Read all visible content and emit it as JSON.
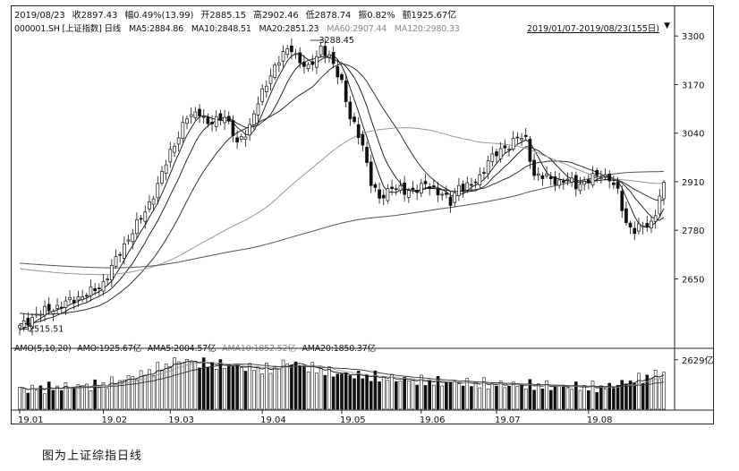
{
  "header": {
    "date": "2019/08/23",
    "close": "收2897.43",
    "change": "幅0.49%(13.99)",
    "open": "开2885.15",
    "high": "高2902.46",
    "low": "低2878.74",
    "amplitude": "振0.82%",
    "amount": "额1925.67亿"
  },
  "ma_legend": {
    "symbol": "000001.SH [上证指数] 日线",
    "ma5": "MA5:2884.86",
    "ma10": "MA10:2848.51",
    "ma20": "MA20:2851.23",
    "ma60": "MA60:2907.44",
    "ma120": "MA120:2980.33"
  },
  "range_label": "2019/01/07-2019/08/23(155日)",
  "range_arrow": "▼",
  "volume_legend": {
    "name": "AMO(5,10,20)",
    "amo": "AMO:1925.67亿",
    "ama5": "AMA5:2004.57亿",
    "ama10": "AMA10:1852.52亿",
    "ama20": "AMA20:1850.37亿"
  },
  "caption": "图为上证综指日线",
  "colors": {
    "line": "#111111",
    "faint": "#8a8a8a",
    "grid": "#cfcfcf",
    "bg": "#ffffff"
  },
  "chart_data": {
    "type": "candlestick",
    "symbol": "000001.SH",
    "y_ticks": [
      "3300",
      "3170",
      "3040",
      "2910",
      "2780",
      "2650"
    ],
    "y_range": [
      2500,
      3310
    ],
    "max_label": "3288.45",
    "min_label": "2515.51",
    "x_ticks": [
      "19.01",
      "19.02",
      "19.03",
      "19.04",
      "19.05",
      "19.06",
      "19.07",
      "19.08"
    ],
    "volume_tick": "2629亿",
    "keypoints": [
      [
        0,
        2520
      ],
      [
        4,
        2555
      ],
      [
        9,
        2575
      ],
      [
        14,
        2600
      ],
      [
        18,
        2620
      ],
      [
        20,
        2640
      ],
      [
        23,
        2700
      ],
      [
        26,
        2760
      ],
      [
        30,
        2830
      ],
      [
        33,
        2900
      ],
      [
        36,
        2990
      ],
      [
        40,
        3080
      ],
      [
        43,
        3100
      ],
      [
        45,
        3060
      ],
      [
        49,
        3090
      ],
      [
        52,
        3010
      ],
      [
        55,
        3060
      ],
      [
        57,
        3120
      ],
      [
        60,
        3200
      ],
      [
        63,
        3250
      ],
      [
        65,
        3270
      ],
      [
        67,
        3230
      ],
      [
        69,
        3210
      ],
      [
        72,
        3270
      ],
      [
        74,
        3240
      ],
      [
        77,
        3180
      ],
      [
        79,
        3080
      ],
      [
        82,
        3010
      ],
      [
        84,
        2910
      ],
      [
        86,
        2860
      ],
      [
        89,
        2900
      ],
      [
        92,
        2880
      ],
      [
        94,
        2890
      ],
      [
        97,
        2900
      ],
      [
        101,
        2880
      ],
      [
        103,
        2850
      ],
      [
        105,
        2900
      ],
      [
        108,
        2900
      ],
      [
        110,
        2920
      ],
      [
        112,
        2970
      ],
      [
        115,
        2990
      ],
      [
        117,
        3010
      ],
      [
        119,
        3030
      ],
      [
        121,
        3020
      ],
      [
        123,
        2930
      ],
      [
        126,
        2920
      ],
      [
        129,
        2910
      ],
      [
        131,
        2915
      ],
      [
        133,
        2900
      ],
      [
        135,
        2910
      ],
      [
        137,
        2920
      ],
      [
        139,
        2930
      ],
      [
        141,
        2920
      ],
      [
        143,
        2880
      ],
      [
        145,
        2800
      ],
      [
        147,
        2780
      ],
      [
        149,
        2790
      ],
      [
        151,
        2800
      ],
      [
        152,
        2830
      ],
      [
        153,
        2870
      ],
      [
        154,
        2897
      ]
    ],
    "ma_lines": [
      {
        "name": "MA5",
        "period": 5
      },
      {
        "name": "MA10",
        "period": 10
      },
      {
        "name": "MA20",
        "period": 20
      },
      {
        "name": "MA60",
        "period": 60
      },
      {
        "name": "MA120",
        "period": 120
      }
    ],
    "volume": [
      {
        "i": 0,
        "v": 1050
      },
      {
        "i": 20,
        "v": 1300
      },
      {
        "i": 30,
        "v": 1900
      },
      {
        "i": 38,
        "v": 2600
      },
      {
        "i": 45,
        "v": 2400
      },
      {
        "i": 60,
        "v": 2100
      },
      {
        "i": 64,
        "v": 2500
      },
      {
        "i": 75,
        "v": 1900
      },
      {
        "i": 95,
        "v": 1500
      },
      {
        "i": 115,
        "v": 1300
      },
      {
        "i": 140,
        "v": 1150
      },
      {
        "i": 154,
        "v": 1925
      }
    ],
    "vol_range": [
      0,
      3000
    ]
  }
}
